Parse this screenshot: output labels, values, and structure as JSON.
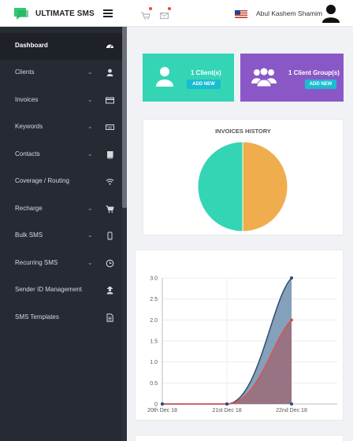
{
  "brand": {
    "name": "ULTIMATE SMS"
  },
  "header": {
    "user_name": "Abul Kashem Shamim"
  },
  "sidebar": {
    "items": [
      {
        "label": "Dashboard",
        "icon": "dashboard-icon",
        "chevron": false,
        "active": true
      },
      {
        "label": "Clients",
        "icon": "user-icon",
        "chevron": true,
        "active": false
      },
      {
        "label": "Invoices",
        "icon": "credit-card-icon",
        "chevron": true,
        "active": false
      },
      {
        "label": "Keywords",
        "icon": "keyboard-icon",
        "chevron": true,
        "active": false
      },
      {
        "label": "Contacts",
        "icon": "book-icon",
        "chevron": true,
        "active": false
      },
      {
        "label": "Coverage / Routing",
        "icon": "wifi-icon",
        "chevron": false,
        "active": false
      },
      {
        "label": "Recharge",
        "icon": "cart-icon",
        "chevron": true,
        "active": false
      },
      {
        "label": "Bulk SMS",
        "icon": "mobile-icon",
        "chevron": true,
        "active": false
      },
      {
        "label": "Recurring SMS",
        "icon": "clock-icon",
        "chevron": true,
        "active": false
      },
      {
        "label": "Sender ID Management",
        "icon": "user-secret-icon",
        "chevron": false,
        "active": false
      },
      {
        "label": "SMS Templates",
        "icon": "file-text-icon",
        "chevron": false,
        "active": false
      }
    ]
  },
  "cards": {
    "clients": {
      "title": "1 Client(s)",
      "button": "ADD NEW",
      "color": "#34d5b5"
    },
    "groups": {
      "title": "1 Client Group(s)",
      "button": "ADD NEW",
      "color": "#8a58c6"
    }
  },
  "invoices_chart": {
    "title": "INVOICES HISTORY",
    "chart_data": {
      "type": "pie",
      "slices": [
        {
          "value": 50,
          "color": "#f0ad4e"
        },
        {
          "value": 50,
          "color": "#34d5b5"
        }
      ]
    }
  },
  "sms_chart": {
    "chart_data": {
      "type": "area",
      "categories": [
        "20th Dec 18",
        "21st Dec 18",
        "22nd Dec 18"
      ],
      "ylim": [
        0,
        3
      ],
      "yticks": [
        "0",
        "0.5",
        "1.0",
        "1.5",
        "2.0",
        "2.5",
        "3.0"
      ],
      "series": [
        {
          "values": [
            0,
            0,
            3
          ],
          "fill": "#6f8fae",
          "stroke": "#2f4d6e"
        },
        {
          "values": [
            0,
            0,
            2
          ],
          "fill": "#9a6b7a",
          "stroke": "#d9534f"
        }
      ]
    }
  }
}
